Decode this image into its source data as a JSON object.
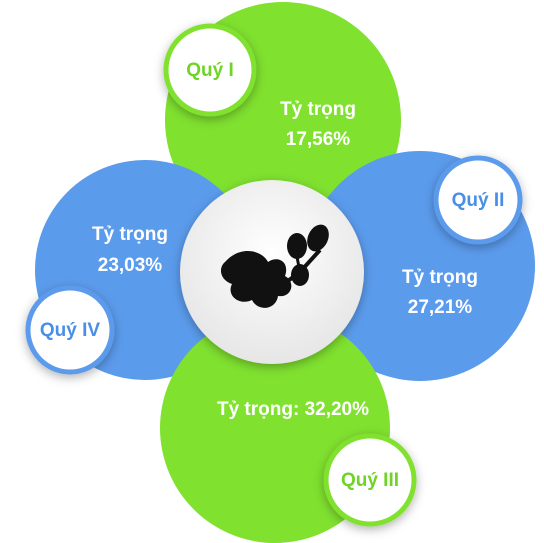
{
  "nodes": [
    {
      "label": "Quý I",
      "share_title": "Tỷ trọng",
      "share": "17,56%"
    },
    {
      "label": "Quý II",
      "share_title": "Tỷ trọng",
      "share": "27,21%"
    },
    {
      "label": "Quý III",
      "share": "Tỷ trọng: 32,20%"
    },
    {
      "label": "Quý IV",
      "share_title": "Tỷ trọng",
      "share": "23,03%"
    }
  ]
}
